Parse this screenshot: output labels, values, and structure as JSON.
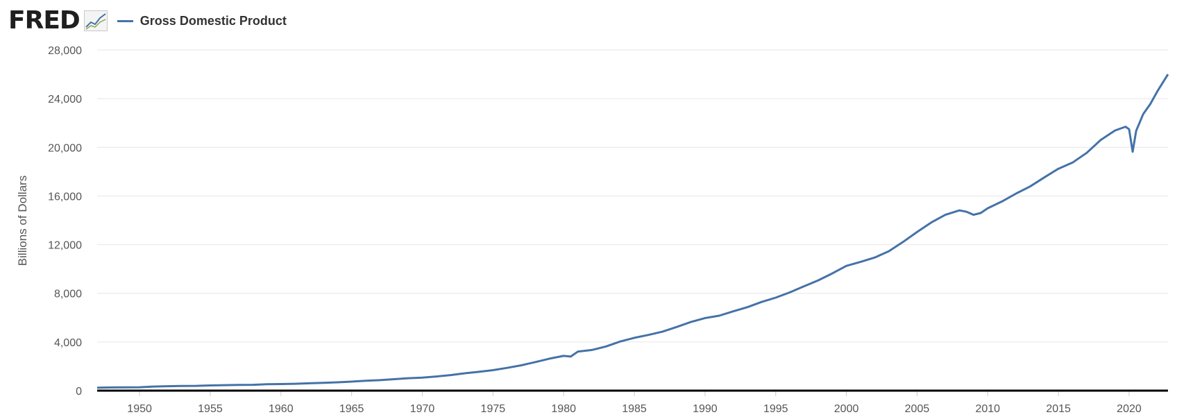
{
  "header": {
    "logo_text": "FRED",
    "logo_icon": "line-chart-icon"
  },
  "chart_data": {
    "type": "line",
    "title": "",
    "xlabel": "",
    "ylabel": "Billions of Dollars",
    "xlim": [
      1947,
      2022.75
    ],
    "ylim": [
      0,
      28000
    ],
    "y_ticks": [
      0,
      4000,
      8000,
      12000,
      16000,
      20000,
      24000,
      28000
    ],
    "y_tick_labels": [
      "0",
      "4,000",
      "8,000",
      "12,000",
      "16,000",
      "20,000",
      "24,000",
      "28,000"
    ],
    "x_ticks": [
      1950,
      1955,
      1960,
      1965,
      1970,
      1975,
      1980,
      1985,
      1990,
      1995,
      2000,
      2005,
      2010,
      2015,
      2020
    ],
    "x_tick_labels": [
      "1950",
      "1955",
      "1960",
      "1965",
      "1970",
      "1975",
      "1980",
      "1985",
      "1990",
      "1995",
      "2000",
      "2005",
      "2010",
      "2015",
      "2020"
    ],
    "grid": true,
    "legend": "top-left",
    "colors": {
      "series": "#4572a7",
      "grid": "#e6e6e6",
      "baseline": "#000000"
    },
    "series": [
      {
        "name": "Gross Domestic Product",
        "x": [
          1947,
          1948,
          1949,
          1950,
          1951,
          1952,
          1953,
          1954,
          1955,
          1956,
          1957,
          1958,
          1959,
          1960,
          1961,
          1962,
          1963,
          1964,
          1965,
          1966,
          1967,
          1968,
          1969,
          1970,
          1971,
          1972,
          1973,
          1974,
          1975,
          1976,
          1977,
          1978,
          1979,
          1980,
          1980.5,
          1981,
          1982,
          1983,
          1984,
          1985,
          1986,
          1987,
          1988,
          1989,
          1990,
          1991,
          1992,
          1993,
          1994,
          1995,
          1996,
          1997,
          1998,
          1999,
          2000,
          2001,
          2002,
          2003,
          2004,
          2005,
          2006,
          2007,
          2008,
          2008.5,
          2009,
          2009.5,
          2010,
          2011,
          2012,
          2013,
          2014,
          2015,
          2016,
          2017,
          2018,
          2019,
          2019.75,
          2020,
          2020.25,
          2020.5,
          2021,
          2021.5,
          2022,
          2022.75
        ],
        "y": [
          243,
          262,
          272,
          280,
          339,
          367,
          389,
          391,
          426,
          449,
          474,
          481,
          522,
          542,
          562,
          604,
          638,
          686,
          744,
          815,
          862,
          943,
          1019,
          1073,
          1165,
          1280,
          1425,
          1545,
          1684,
          1873,
          2082,
          2352,
          2627,
          2857,
          2800,
          3207,
          3343,
          3634,
          4037,
          4339,
          4580,
          4855,
          5236,
          5642,
          5963,
          6158,
          6520,
          6859,
          7287,
          7640,
          8073,
          8578,
          9063,
          9631,
          10251,
          10582,
          10936,
          11458,
          12214,
          13039,
          13816,
          14451,
          14813,
          14700,
          14449,
          14600,
          14992,
          15543,
          16197,
          16785,
          17527,
          18238,
          18745,
          19543,
          20612,
          21381,
          21694,
          21481,
          19636,
          21362,
          22741,
          23550,
          24602,
          26000
        ]
      }
    ]
  }
}
